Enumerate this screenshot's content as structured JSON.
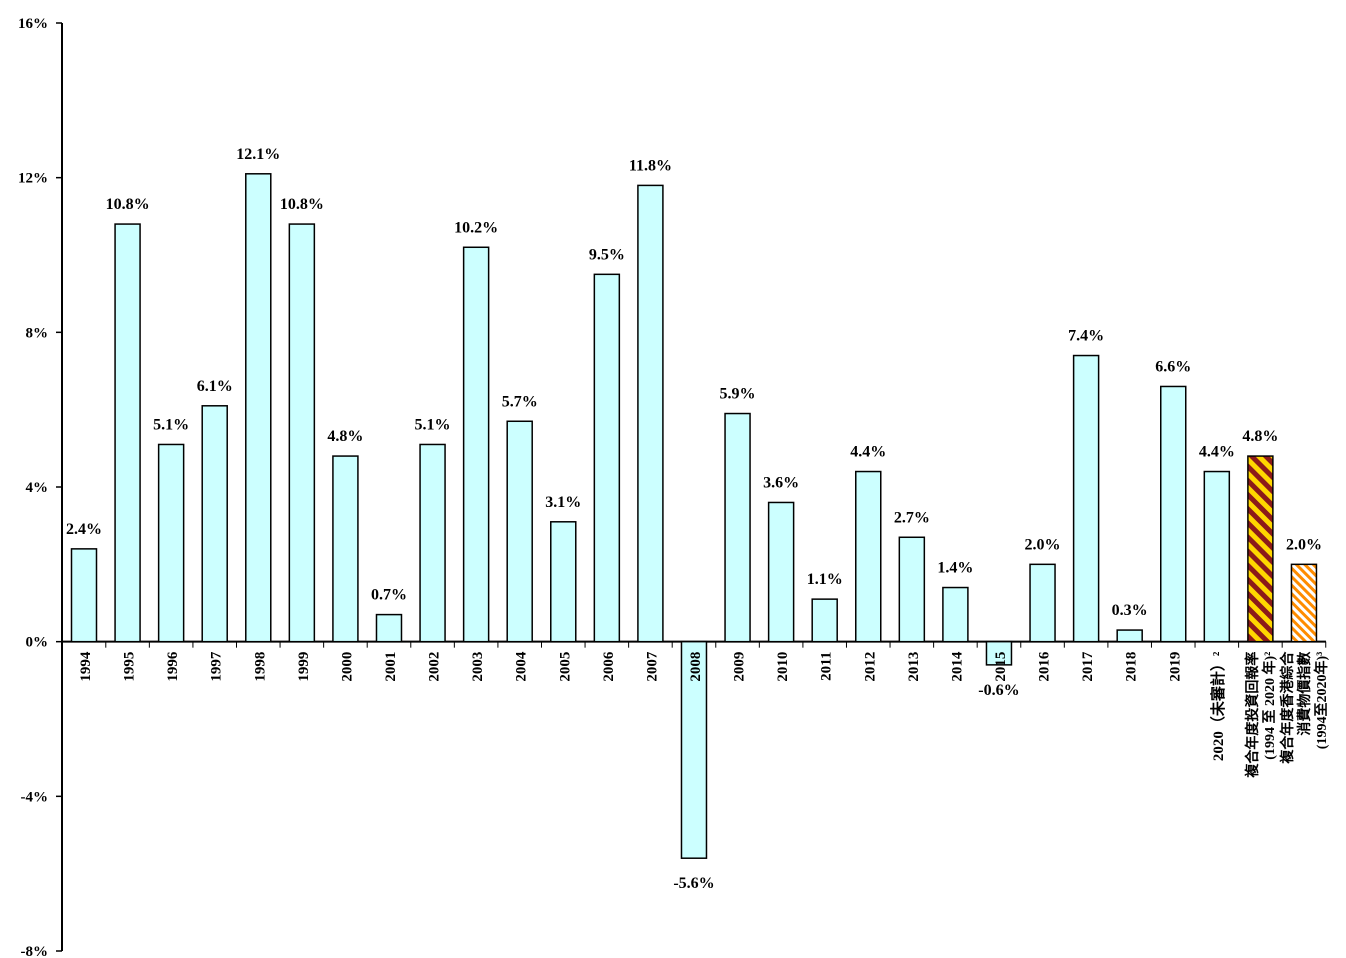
{
  "chart_data": {
    "type": "bar",
    "title": "",
    "xlabel": "",
    "ylabel": "",
    "ylim": [
      -8,
      16
    ],
    "yticks": [
      "-8%",
      "-4%",
      "0%",
      "4%",
      "8%",
      "12%",
      "16%"
    ],
    "grid": false,
    "legend": "none",
    "categories": [
      "1994",
      "1995",
      "1996",
      "1997",
      "1998",
      "1999",
      "2000",
      "2001",
      "2002",
      "2003",
      "2004",
      "2005",
      "2006",
      "2007",
      "2008",
      "2009",
      "2010",
      "2011",
      "2012",
      "2013",
      "2014",
      "2015",
      "2016",
      "2017",
      "2018",
      "2019",
      "2020（未審計）²",
      "複合年度投資回報率（1994至2020年）²",
      "複合年度香港綜合消費物價指數（1994至2020年）³"
    ],
    "values": [
      2.4,
      10.8,
      5.1,
      6.1,
      12.1,
      10.8,
      4.8,
      0.7,
      5.1,
      10.2,
      5.7,
      3.1,
      9.5,
      11.8,
      -5.6,
      5.9,
      3.6,
      1.1,
      4.4,
      2.7,
      1.4,
      -0.6,
      2.0,
      7.4,
      0.3,
      6.6,
      4.4,
      4.8,
      2.0
    ],
    "value_labels": [
      "2.4%",
      "10.8%",
      "5.1%",
      "6.1%",
      "12.1%",
      "10.8%",
      "4.8%",
      "0.7%",
      "5.1%",
      "10.2%",
      "5.7%",
      "3.1%",
      "9.5%",
      "11.8%",
      "-5.6%",
      "5.9%",
      "3.6%",
      "1.1%",
      "4.4%",
      "2.7%",
      "1.4%",
      "-0.6%",
      "2.0%",
      "7.4%",
      "0.3%",
      "6.6%",
      "4.4%",
      "4.8%",
      "2.0%"
    ],
    "special_labels": {
      "27": [
        "複合年度投資回報率",
        "(1994 至 2020 年)²"
      ],
      "28": [
        "複合年度香港綜合",
        "消費物價指數",
        "(1994至2020年)³"
      ]
    },
    "colors": {
      "bar_fill": "#CCFFFF",
      "bar_stroke": "#000000",
      "cagr_stripe_a": "#8B1A1A",
      "cagr_stripe_b": "#FFD700",
      "cpi_stripe_a": "#FF8C00",
      "cpi_stripe_b": "#FFFFFF"
    }
  }
}
